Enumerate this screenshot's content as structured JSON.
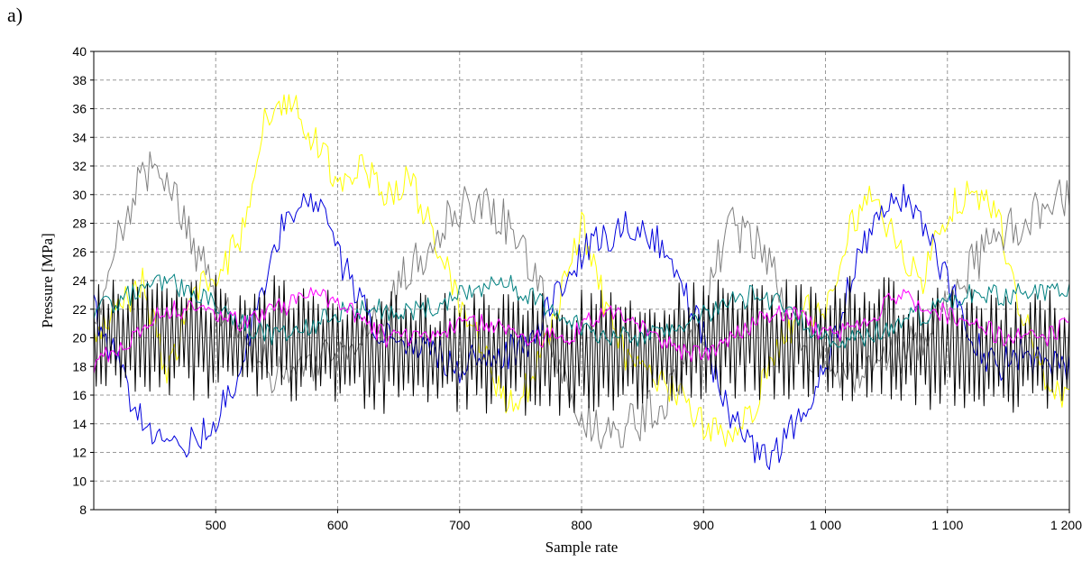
{
  "panel_label": "a)",
  "chart_data": {
    "type": "line",
    "title": "",
    "xlabel": "Sample rate",
    "ylabel": "Pressure [MPa]",
    "xlim": [
      400,
      1200
    ],
    "ylim": [
      8,
      40
    ],
    "x_ticks": [
      500,
      600,
      700,
      800,
      900,
      1000,
      1100,
      1200
    ],
    "x_tick_labels": [
      "500",
      "600",
      "700",
      "800",
      "900",
      "1 000",
      "1 100",
      "1 200"
    ],
    "y_ticks": [
      8,
      10,
      12,
      14,
      16,
      18,
      20,
      22,
      24,
      26,
      28,
      30,
      32,
      34,
      36,
      38,
      40
    ],
    "y_tick_labels": [
      "8",
      "10",
      "12",
      "14",
      "16",
      "18",
      "20",
      "22",
      "24",
      "26",
      "28",
      "30",
      "32",
      "34",
      "36",
      "38",
      "40"
    ],
    "grid": true,
    "legend": false,
    "series": [
      {
        "color": "#ffff00",
        "noise": 1.2,
        "x": [
          400,
          420,
          440,
          460,
          480,
          500,
          520,
          540,
          560,
          580,
          600,
          620,
          640,
          660,
          680,
          700,
          720,
          740,
          760,
          780,
          800,
          820,
          840,
          860,
          880,
          900,
          920,
          940,
          960,
          980,
          1000,
          1020,
          1040,
          1060,
          1080,
          1100,
          1120,
          1140,
          1160,
          1180,
          1200
        ],
        "values": [
          20,
          22,
          24,
          17,
          23,
          24,
          27,
          35,
          37,
          34,
          31,
          32,
          30,
          31,
          27,
          22,
          19,
          15,
          17,
          22,
          28,
          22,
          18,
          17,
          16,
          14,
          13,
          15,
          19,
          22,
          22,
          28,
          30,
          26,
          24,
          29,
          30,
          29,
          22,
          17,
          16
        ]
      },
      {
        "color": "#808080",
        "noise": 1.6,
        "x": [
          400,
          420,
          440,
          460,
          480,
          500,
          520,
          540,
          560,
          580,
          600,
          620,
          640,
          660,
          680,
          700,
          720,
          740,
          760,
          780,
          800,
          820,
          840,
          860,
          880,
          900,
          920,
          940,
          960,
          980,
          1000,
          1020,
          1040,
          1060,
          1080,
          1100,
          1120,
          1140,
          1160,
          1180,
          1200
        ],
        "values": [
          20,
          27,
          32,
          31,
          27,
          23,
          20,
          18,
          17,
          18,
          19,
          20,
          22,
          25,
          27,
          29,
          29,
          28,
          25,
          19,
          15,
          13,
          14,
          15,
          17,
          22,
          28,
          27,
          24,
          20,
          18,
          17,
          18,
          19,
          20,
          22,
          25,
          27,
          28,
          29,
          30
        ]
      },
      {
        "color": "#0000dd",
        "noise": 1.2,
        "x": [
          400,
          420,
          440,
          460,
          480,
          500,
          520,
          540,
          560,
          580,
          600,
          620,
          640,
          660,
          680,
          700,
          720,
          740,
          760,
          780,
          800,
          820,
          840,
          860,
          880,
          900,
          920,
          940,
          960,
          980,
          1000,
          1020,
          1040,
          1060,
          1080,
          1100,
          1120,
          1140,
          1160,
          1180,
          1200
        ],
        "values": [
          22,
          18,
          14,
          12,
          13,
          14,
          18,
          24,
          29,
          30,
          26,
          22,
          20,
          19,
          19,
          18,
          19,
          19,
          20,
          23,
          26,
          27,
          28,
          27,
          24,
          20,
          15,
          12,
          12,
          15,
          18,
          24,
          28,
          30,
          28,
          24,
          20,
          18,
          19,
          18,
          18
        ]
      },
      {
        "color": "#000000",
        "noise": 3.4,
        "x": [
          400,
          450,
          500,
          550,
          600,
          650,
          700,
          750,
          800,
          850,
          900,
          950,
          1000,
          1050,
          1100,
          1150,
          1200
        ],
        "values": [
          20,
          20,
          20,
          20,
          19,
          19,
          19,
          19,
          19,
          19,
          20,
          20,
          20,
          20,
          19,
          19,
          19
        ]
      },
      {
        "color": "#008080",
        "noise": 0.8,
        "x": [
          400,
          430,
          460,
          490,
          520,
          550,
          580,
          610,
          640,
          670,
          700,
          730,
          760,
          790,
          820,
          850,
          880,
          910,
          940,
          970,
          1000,
          1030,
          1060,
          1090,
          1120,
          1150,
          1180,
          1200
        ],
        "values": [
          22,
          23,
          24,
          23,
          21,
          20,
          21,
          22,
          22,
          22,
          23,
          24,
          23,
          21,
          20,
          20,
          21,
          22,
          23,
          22,
          20,
          20,
          21,
          22,
          23,
          23,
          23,
          23
        ]
      },
      {
        "color": "#ff00ff",
        "noise": 0.7,
        "x": [
          400,
          430,
          460,
          490,
          520,
          550,
          580,
          610,
          640,
          670,
          700,
          730,
          760,
          790,
          820,
          850,
          880,
          910,
          940,
          970,
          1000,
          1030,
          1060,
          1090,
          1120,
          1150,
          1180,
          1200
        ],
        "values": [
          18,
          20,
          22,
          22,
          21,
          22,
          23,
          22,
          20,
          20,
          21,
          21,
          20,
          20,
          22,
          21,
          19,
          19,
          21,
          22,
          20,
          21,
          23,
          22,
          21,
          20,
          20,
          21
        ]
      }
    ]
  }
}
